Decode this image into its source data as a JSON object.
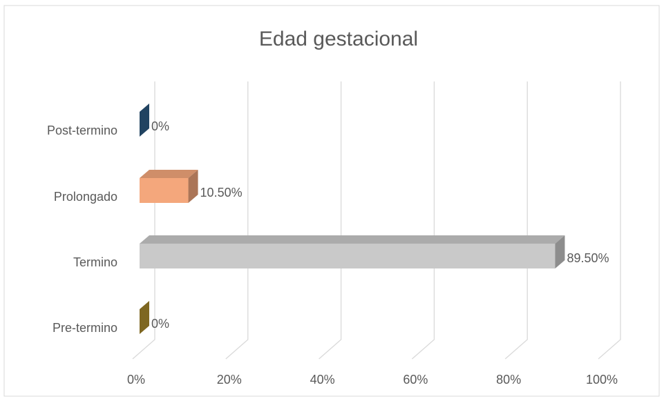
{
  "chart_data": {
    "type": "bar3d_horizontal",
    "title": "Edad gestacional",
    "categories": [
      "Post-termino",
      "Prolongado",
      "Termino",
      "Pre-termino"
    ],
    "values": [
      0,
      10.5,
      89.5,
      0
    ],
    "value_labels": [
      "0%",
      "10.50%",
      "89.50%",
      "0%"
    ],
    "colors": [
      "#2f5f8a",
      "#f4a77c",
      "#c9c9c9",
      "#b4932f"
    ],
    "xlim": [
      0,
      100
    ],
    "xticks": [
      {
        "value": 0,
        "label": "0%"
      },
      {
        "value": 20,
        "label": "20%"
      },
      {
        "value": 40,
        "label": "40%"
      },
      {
        "value": 60,
        "label": "60%"
      },
      {
        "value": 80,
        "label": "80%"
      },
      {
        "value": 100,
        "label": "100%"
      }
    ],
    "grid": true
  }
}
